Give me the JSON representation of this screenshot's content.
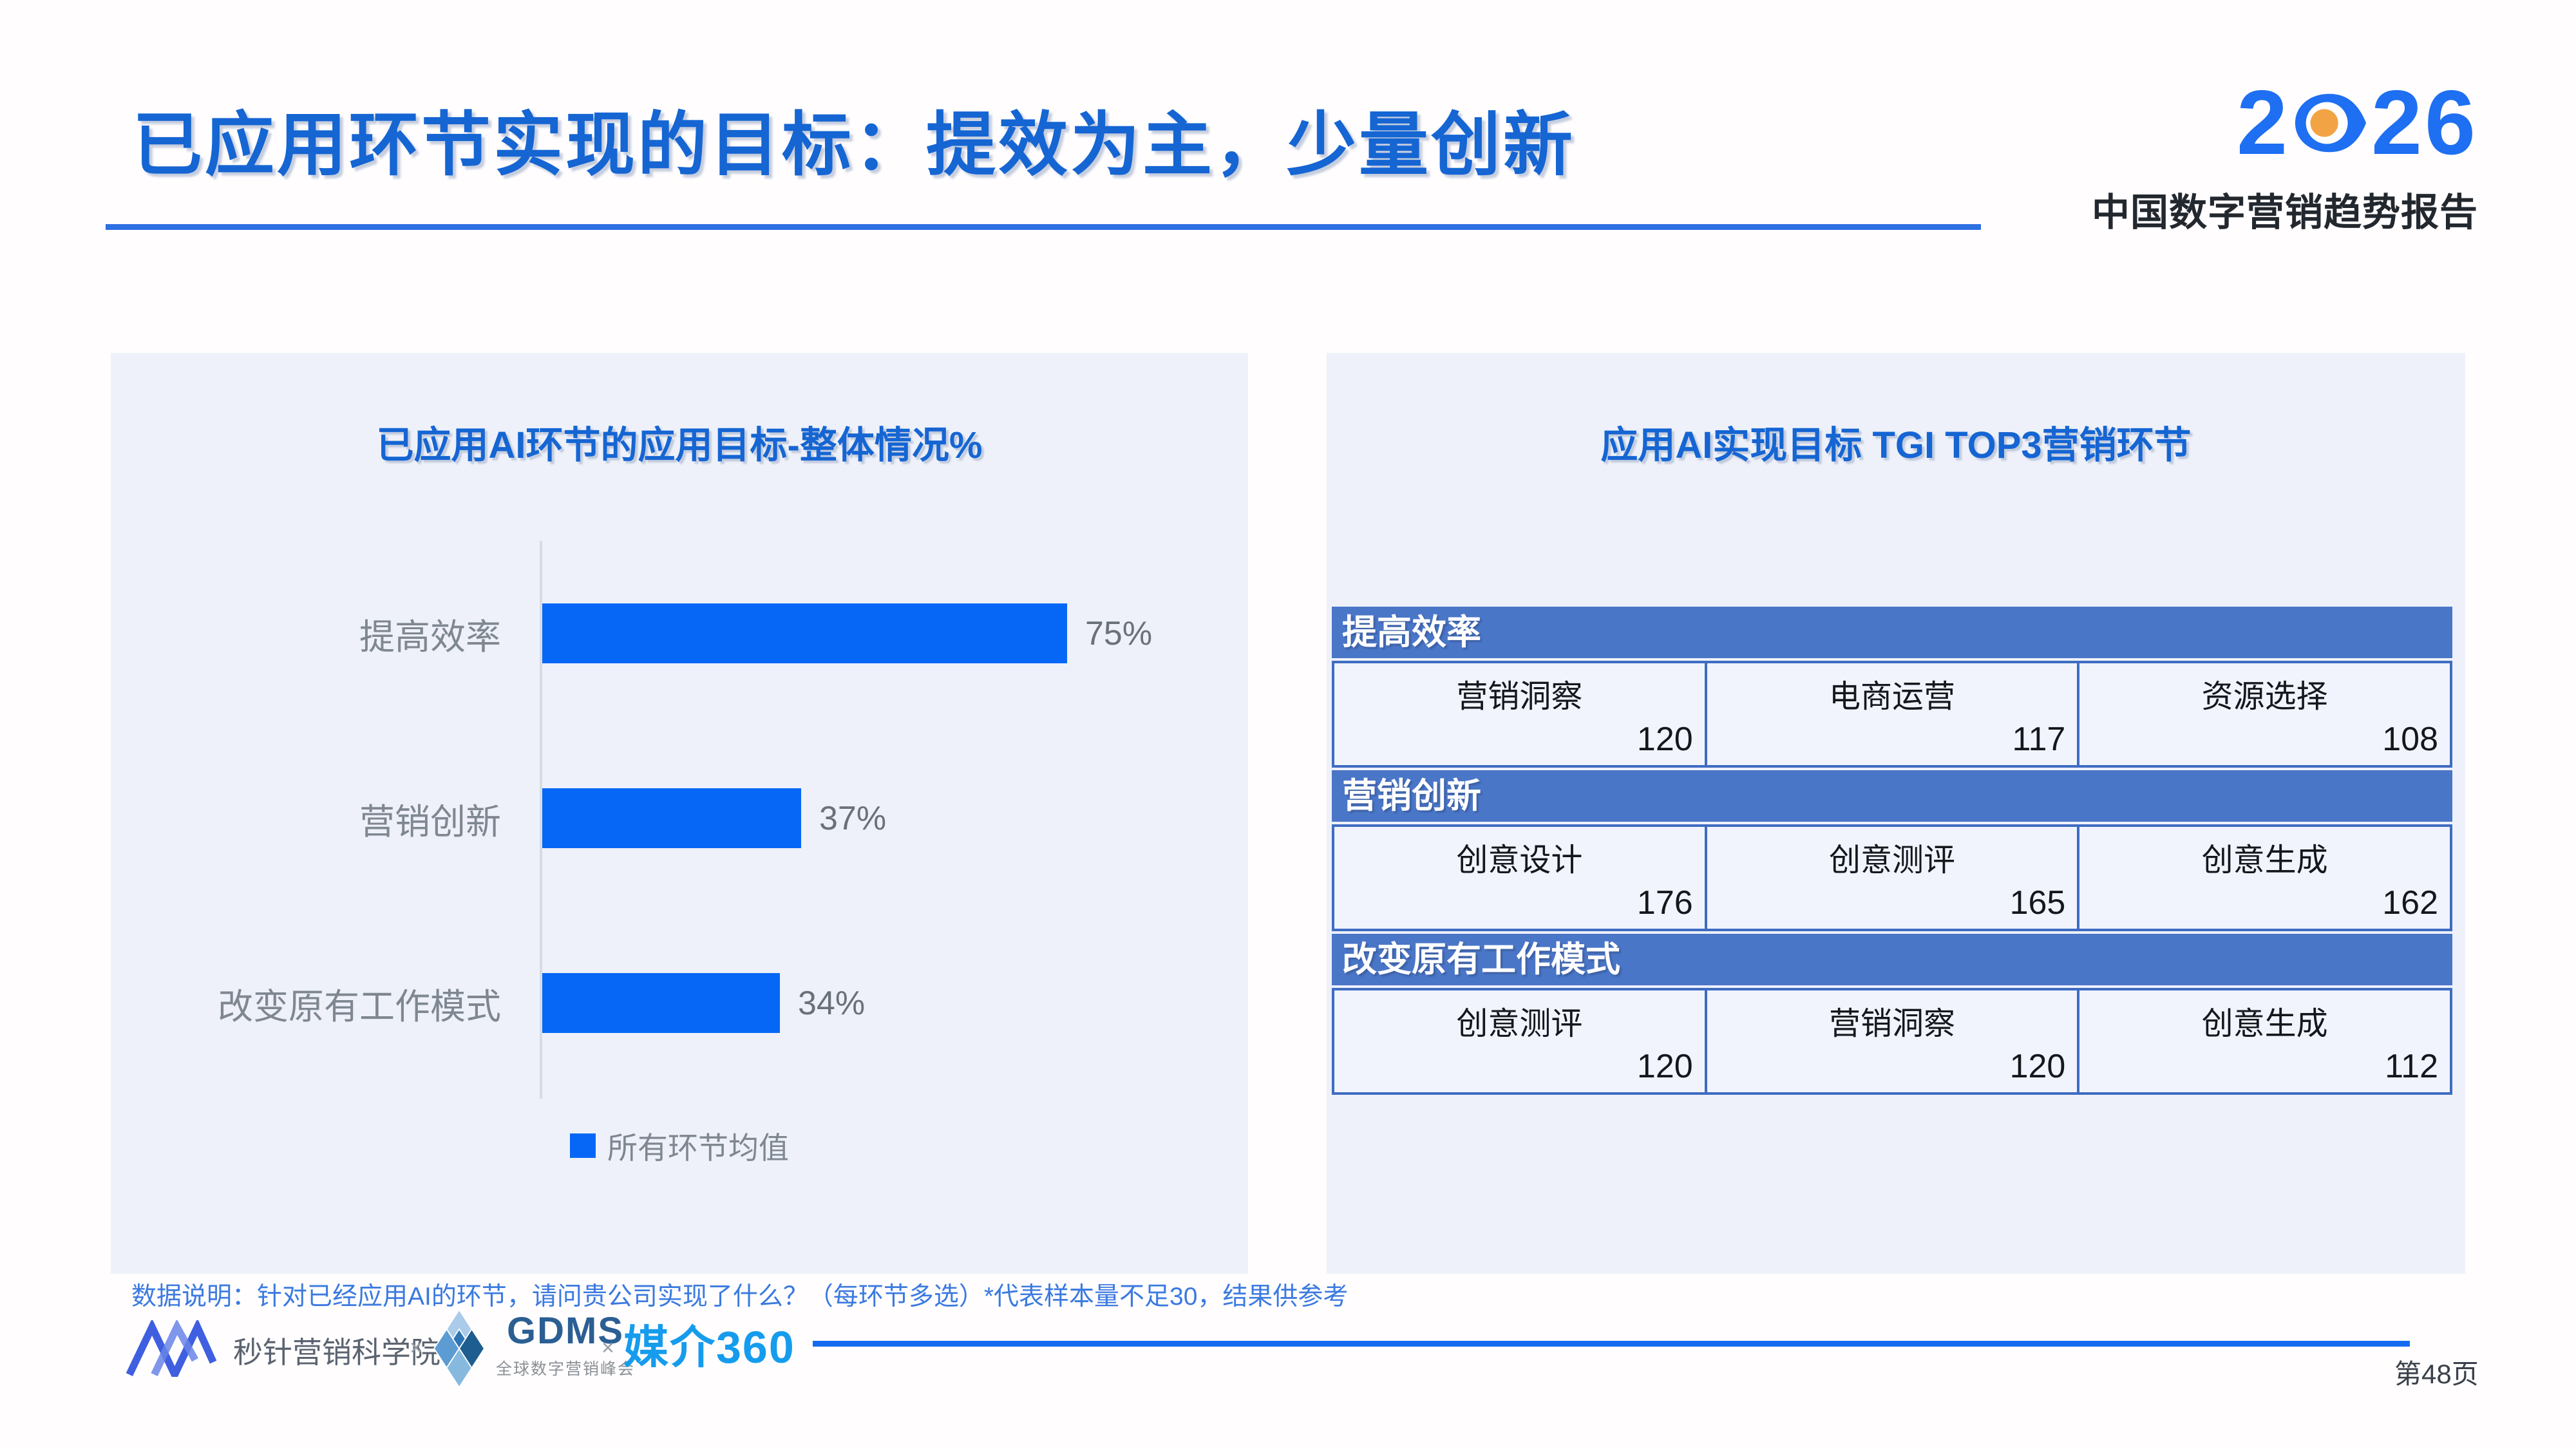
{
  "header": {
    "title": "已应用环节实现的目标：提效为主，少量创新"
  },
  "brand": {
    "year_prefix": "2",
    "year_suffix": "26",
    "subtitle": "中国数字营销趋势报告"
  },
  "chart_data": [
    {
      "type": "bar",
      "orientation": "horizontal",
      "title": "已应用AI环节的应用目标-整体情况%",
      "categories": [
        "提高效率",
        "营销创新",
        "改变原有工作模式"
      ],
      "values": [
        75,
        37,
        34
      ],
      "unit": "%",
      "xlim": [
        0,
        100
      ],
      "grid": false,
      "legend": [
        "所有环节均值"
      ],
      "legend_position": "bottom",
      "bar_color": "#0667f6"
    },
    {
      "type": "table",
      "title": "应用AI实现目标 TGI TOP3营销环节",
      "sections": [
        {
          "header": "提高效率",
          "cells": [
            {
              "label": "营销洞察",
              "value": 120
            },
            {
              "label": "电商运营",
              "value": 117
            },
            {
              "label": "资源选择",
              "value": 108
            }
          ]
        },
        {
          "header": "营销创新",
          "cells": [
            {
              "label": "创意设计",
              "value": 176
            },
            {
              "label": "创意测评",
              "value": 165
            },
            {
              "label": "创意生成",
              "value": 162
            }
          ]
        },
        {
          "header": "改变原有工作模式",
          "cells": [
            {
              "label": "创意测评",
              "value": 120
            },
            {
              "label": "营销洞察",
              "value": 120
            },
            {
              "label": "创意生成",
              "value": 112
            }
          ]
        }
      ]
    }
  ],
  "note": {
    "text": "数据说明：针对已经应用AI的环节，请问贵公司实现了什么？（每环节多选）*代表样本量不足30，结果供参考"
  },
  "footer": {
    "partner1": "秒针营销科学院",
    "sep1": "×",
    "partner2_name": "GDMS",
    "partner2_sub": "全球数字营销峰会",
    "sep2": "×",
    "partner3": "媒介360"
  },
  "page_number": "第48页",
  "colors": {
    "title_blue": "#1565d3",
    "bar_blue": "#0667f6",
    "table_header_blue": "#4a76c8",
    "table_border_blue": "#3f6cc2",
    "panel_bg": "#eef1f9",
    "note_blue": "#3b7ae0",
    "brand_blue": "#1e6ff2",
    "eye_orange": "#f2a444",
    "media360_blue": "#169ced"
  }
}
